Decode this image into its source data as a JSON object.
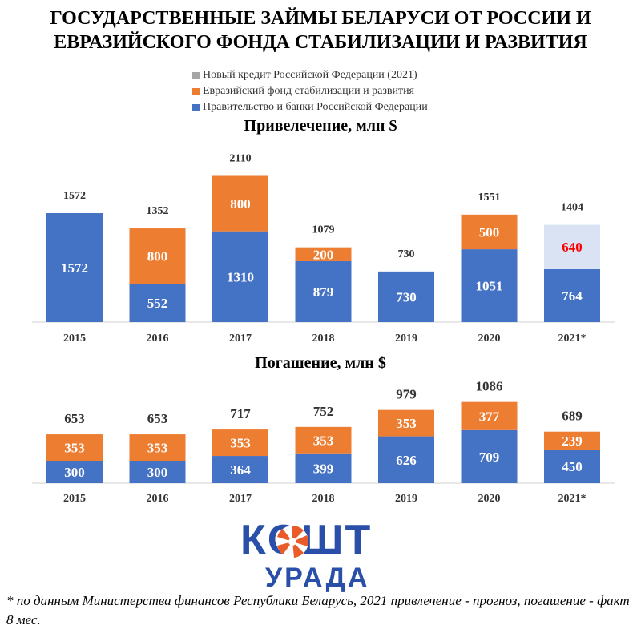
{
  "title_line1": "ГОСУДАРСТВЕННЫЕ ЗАЙМЫ БЕЛАРУСИ ОТ РОССИИ И",
  "title_line2": "ЕВРАЗИЙСКОГО ФОНДА СТАБИЛИЗАЦИИ И РАЗВИТИЯ",
  "legend": [
    {
      "label": "Новый кредит Российской Федерации (2021)",
      "color": "#a6a6a6"
    },
    {
      "label": "Евразийский фонд стабилизации и развития",
      "color": "#ed7d31"
    },
    {
      "label": "Правительство и банки Российской Федерации",
      "color": "#4472c4"
    }
  ],
  "colors": {
    "russia": "#4472c4",
    "efsd": "#ed7d31",
    "new_credit": "#dae3f3",
    "new_credit_label": "#ff0000",
    "total_label": "#333333"
  },
  "chart_data": [
    {
      "type": "bar",
      "stacked": true,
      "title": "Привелечение, млн $",
      "categories": [
        "2015",
        "2016",
        "2017",
        "2018",
        "2019",
        "2020",
        "2021*"
      ],
      "series": [
        {
          "name": "Правительство и банки Российской Федерации",
          "values": [
            1572,
            552,
            1310,
            879,
            730,
            1051,
            764
          ]
        },
        {
          "name": "Евразийский фонд стабилизации и развития",
          "values": [
            0,
            800,
            800,
            200,
            0,
            500,
            0
          ]
        },
        {
          "name": "Новый кредит Российской Федерации (2021)",
          "values": [
            0,
            0,
            0,
            0,
            0,
            0,
            640
          ]
        }
      ],
      "totals": [
        1572,
        1352,
        2110,
        1079,
        730,
        1551,
        1404
      ]
    },
    {
      "type": "bar",
      "stacked": true,
      "title": "Погашение, млн $",
      "categories": [
        "2015",
        "2016",
        "2017",
        "2018",
        "2019",
        "2020",
        "2021*"
      ],
      "series": [
        {
          "name": "Правительство и банки Российской Федерации",
          "values": [
            300,
            300,
            364,
            399,
            626,
            709,
            450
          ]
        },
        {
          "name": "Евразийский фонд стабилизации и развития",
          "values": [
            353,
            353,
            353,
            353,
            353,
            377,
            239
          ]
        }
      ],
      "totals": [
        653,
        653,
        717,
        752,
        979,
        1086,
        689
      ]
    }
  ],
  "logo": {
    "line1": "КОШТ",
    "line2": "УРАДА"
  },
  "footnote": "* по данным Министерства финансов Республики Беларусь, 2021 привлечение - прогноз, погашение - факт 8 мес."
}
